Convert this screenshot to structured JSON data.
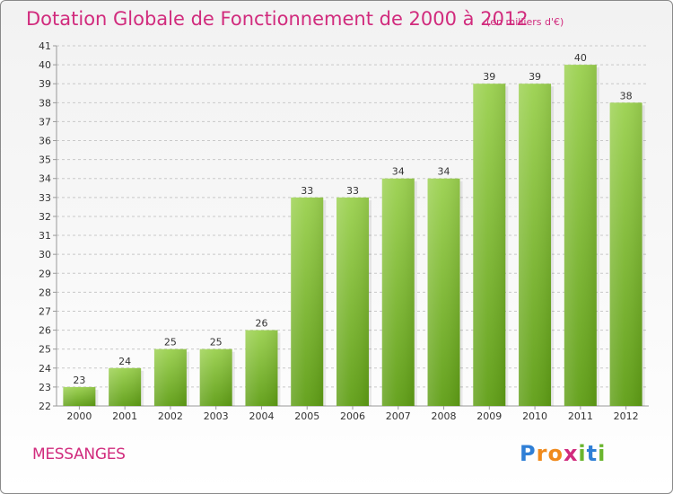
{
  "title": "Dotation Globale de Fonctionnement de 2000 à 2012",
  "subtitle": "(en milliers d'€)",
  "commune": "MESSANGES",
  "logo": {
    "text": "Proxiti",
    "letters": [
      "P",
      "r",
      "o",
      "x",
      "i",
      "t",
      "i"
    ],
    "colors": [
      "#2f7fd6",
      "#f08a1c",
      "#f08a1c",
      "#d12b7d",
      "#6ab52e",
      "#2f7fd6",
      "#6ab52e"
    ]
  },
  "colors": {
    "accent": "#d12b7d",
    "bar_top": "#9bd14f",
    "bar_bottom": "#5f9e15"
  },
  "chart_data": {
    "type": "bar",
    "categories": [
      "2000",
      "2001",
      "2002",
      "2003",
      "2004",
      "2005",
      "2006",
      "2007",
      "2008",
      "2009",
      "2010",
      "2011",
      "2012"
    ],
    "values": [
      23,
      24,
      25,
      25,
      26,
      33,
      33,
      34,
      34,
      39,
      39,
      40,
      38
    ],
    "title": "Dotation Globale de Fonctionnement de 2000 à 2012",
    "xlabel": "",
    "ylabel": "",
    "ylim": [
      22,
      41
    ],
    "yticks": [
      22,
      23,
      24,
      25,
      26,
      27,
      28,
      29,
      30,
      31,
      32,
      33,
      34,
      35,
      36,
      37,
      38,
      39,
      40,
      41
    ],
    "grid": true,
    "legend": "none"
  }
}
